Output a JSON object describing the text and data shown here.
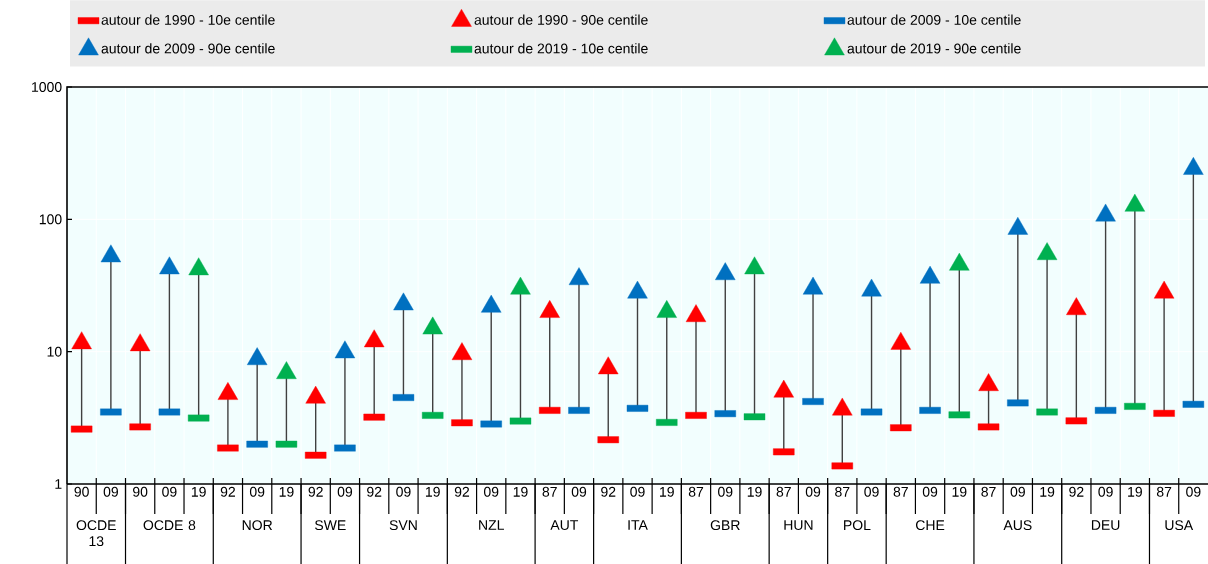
{
  "chart_data": {
    "type": "scatter",
    "log": "y",
    "ylim": [
      1,
      1000
    ],
    "yticks": [
      1,
      10,
      100,
      1000
    ],
    "grid": true,
    "legend": "top",
    "categories": [
      "90",
      "09",
      "90",
      "09",
      "19",
      "92",
      "09",
      "19",
      "92",
      "09",
      "92",
      "09",
      "19",
      "92",
      "09",
      "19",
      "87",
      "09",
      "92",
      "09",
      "19",
      "87",
      "09",
      "19",
      "87",
      "09",
      "87",
      "09",
      "87",
      "09",
      "19",
      "87",
      "09",
      "19",
      "92",
      "09",
      "19",
      "87",
      "09"
    ],
    "annotations": [
      "OCDE 13",
      "OCDE 8",
      "NOR",
      "SWE",
      "SVN",
      "NZL",
      "AUT",
      "ITA",
      "GBR",
      "HUN",
      "POL",
      "CHE",
      "AUS",
      "DEU",
      "USA"
    ],
    "series": [
      {
        "name": "autour de 1990 - 10e centile",
        "color": "#ff0000",
        "marker": "square",
        "values": [
          2.6,
          null,
          2.7,
          null,
          null,
          1.87,
          null,
          null,
          1.65,
          null,
          3.2,
          null,
          null,
          2.9,
          null,
          null,
          3.6,
          null,
          2.16,
          null,
          null,
          3.3,
          null,
          null,
          1.75,
          null,
          1.37,
          null,
          2.66,
          null,
          null,
          2.7,
          null,
          null,
          3.0,
          null,
          null,
          3.42,
          null
        ]
      },
      {
        "name": "autour de 1990 - 90e centile",
        "color": "#ff0000",
        "marker": "triangle",
        "values": [
          11.6,
          null,
          11.2,
          null,
          null,
          4.8,
          null,
          null,
          4.5,
          null,
          12,
          null,
          null,
          9.6,
          null,
          null,
          20,
          null,
          7.5,
          null,
          null,
          18.6,
          null,
          null,
          5.0,
          null,
          3.66,
          null,
          11.5,
          null,
          null,
          5.6,
          null,
          null,
          21,
          null,
          null,
          28,
          null
        ]
      },
      {
        "name": "autour de 2009 - 10e centile",
        "color": "#0070c0",
        "marker": "square",
        "values": [
          null,
          3.5,
          null,
          3.5,
          null,
          null,
          2.0,
          null,
          null,
          1.87,
          null,
          4.5,
          null,
          null,
          2.84,
          null,
          null,
          3.6,
          null,
          3.73,
          null,
          null,
          3.4,
          null,
          null,
          4.2,
          null,
          3.5,
          null,
          3.6,
          null,
          null,
          4.1,
          null,
          null,
          3.6,
          null,
          null,
          4.0
        ]
      },
      {
        "name": "autour de 2009 - 90e centile",
        "color": "#0070c0",
        "marker": "triangle",
        "values": [
          null,
          52.6,
          null,
          42.7,
          null,
          null,
          8.8,
          null,
          null,
          9.9,
          null,
          22.8,
          null,
          null,
          21.9,
          null,
          null,
          35.4,
          null,
          28,
          null,
          null,
          38.6,
          null,
          null,
          30,
          null,
          29,
          null,
          36.3,
          null,
          null,
          85,
          null,
          null,
          107,
          null,
          null,
          241
        ]
      },
      {
        "name": "autour de 2019 - 10e centile",
        "color": "#00b050",
        "marker": "square",
        "values": [
          null,
          null,
          null,
          null,
          3.15,
          null,
          null,
          2.0,
          null,
          null,
          null,
          null,
          3.3,
          null,
          null,
          2.99,
          null,
          null,
          null,
          null,
          2.92,
          null,
          null,
          3.22,
          null,
          null,
          null,
          null,
          null,
          null,
          3.33,
          null,
          null,
          3.5,
          null,
          null,
          3.86,
          null,
          null
        ]
      },
      {
        "name": "autour de 2019 - 90e centile",
        "color": "#00b050",
        "marker": "triangle",
        "values": [
          null,
          null,
          null,
          null,
          42,
          null,
          null,
          6.9,
          null,
          null,
          null,
          null,
          15,
          null,
          null,
          30,
          null,
          null,
          null,
          null,
          20,
          null,
          null,
          42.7,
          null,
          null,
          null,
          null,
          null,
          null,
          45.5,
          null,
          null,
          54.7,
          null,
          null,
          127,
          null,
          null
        ]
      }
    ]
  }
}
